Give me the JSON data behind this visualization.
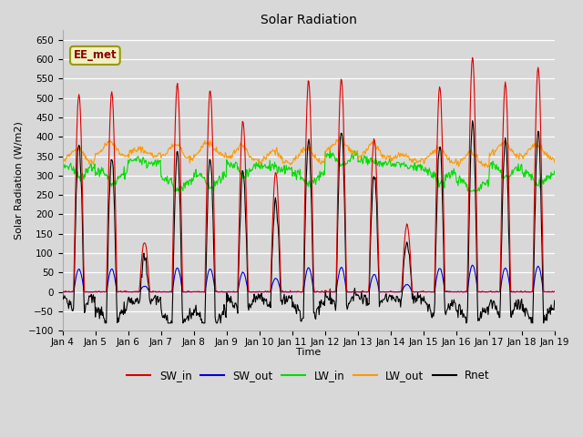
{
  "title": "Solar Radiation",
  "ylabel": "Solar Radiation (W/m2)",
  "xlabel": "Time",
  "ylim": [
    -100,
    675
  ],
  "yticks": [
    -100,
    -50,
    0,
    50,
    100,
    150,
    200,
    250,
    300,
    350,
    400,
    450,
    500,
    550,
    600,
    650
  ],
  "xtick_labels": [
    "Jan 4",
    "Jan 5",
    "Jan 6",
    "Jan 7",
    "Jan 8",
    "Jan 9",
    "Jan 10",
    "Jan 11",
    "Jan 12",
    "Jan 13",
    "Jan 14",
    "Jan 15",
    "Jan 16",
    "Jan 17",
    "Jan 18",
    "Jan 19"
  ],
  "colors": {
    "SW_in": "#dd0000",
    "SW_out": "#0000dd",
    "LW_in": "#00dd00",
    "LW_out": "#ff9900",
    "Rnet": "#000000"
  },
  "legend_label": "EE_met",
  "bg_color": "#d8d8d8",
  "grid_color": "#ffffff"
}
